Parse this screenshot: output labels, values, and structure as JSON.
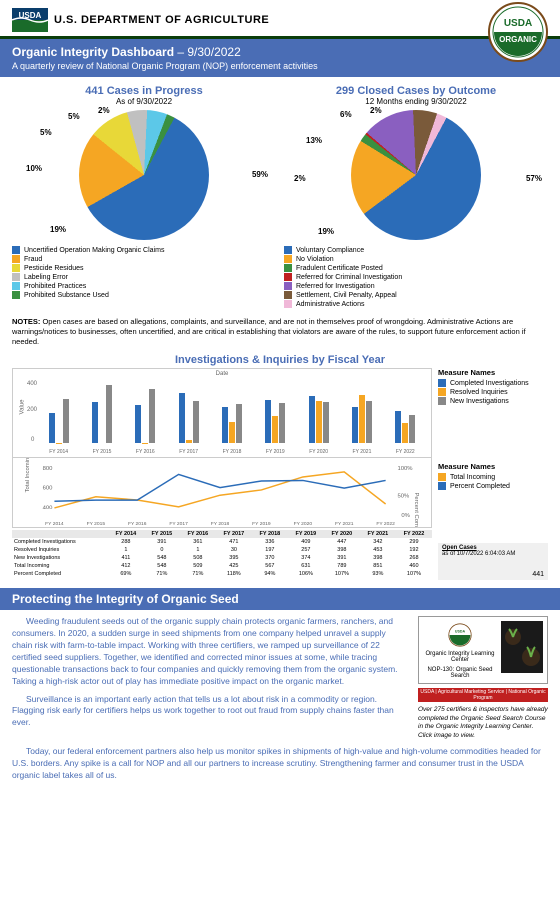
{
  "header": {
    "dept": "U.S. DEPARTMENT OF AGRICULTURE",
    "seal_top": "USDA",
    "seal_bottom": "ORGANIC"
  },
  "titlebar": {
    "main": "Organic Integrity Dashboard",
    "date": "9/30/2022",
    "sub": "A quarterly review of National Organic Program (NOP) enforcement activities"
  },
  "pie1": {
    "title": "441 Cases in Progress",
    "sub": "As of 9/30/2022",
    "slices": [
      {
        "label": "Uncertified Operation Making Organic Claims",
        "pct": 59,
        "color": "#2b6cb8"
      },
      {
        "label": "Fraud",
        "pct": 19,
        "color": "#f5a623"
      },
      {
        "label": "Pesticide Residues",
        "pct": 10,
        "color": "#e8d838"
      },
      {
        "label": "Labeling Error",
        "pct": 5,
        "color": "#c0c0c0"
      },
      {
        "label": "Prohibited Practices",
        "pct": 5,
        "color": "#5cc8e8"
      },
      {
        "label": "Prohibited Substance Used",
        "pct": 2,
        "color": "#3a9040"
      }
    ]
  },
  "pie2": {
    "title": "299 Closed Cases by Outcome",
    "sub": "12 Months ending 9/30/2022",
    "slices": [
      {
        "label": "Voluntary Compliance",
        "pct": 57,
        "color": "#2b6cb8"
      },
      {
        "label": "No Violation",
        "pct": 19,
        "color": "#f5a623"
      },
      {
        "label": "Fradulent Certificate Posted",
        "pct": 2,
        "color": "#3a9040"
      },
      {
        "label": "Referred for Criminal Investigation",
        "pct": 0.5,
        "color": "#c02020"
      },
      {
        "label": "Referred for Investigation",
        "pct": 13,
        "color": "#8a5fc0"
      },
      {
        "label": "Settlement, Civil Penalty, Appeal",
        "pct": 6,
        "color": "#7a5a3a"
      },
      {
        "label": "Administrative Actions",
        "pct": 2,
        "color": "#f0b8d8"
      }
    ],
    "visible_labels": [
      "57%",
      "19%",
      "2%",
      "13%",
      "6%",
      "2%"
    ]
  },
  "notes": {
    "label": "NOTES:",
    "text": "Open cases are based on allegations, complaints, and surveillance, and are not in themselves proof of wrongdoing. Administrative Actions are warnings/notices to businesses, often uncertified, and are critical in establishing that violators are aware of the rules, to support future enforcement action if needed."
  },
  "invest": {
    "title": "Investigations & Inquiries by Fiscal Year",
    "years": [
      "FY 2014",
      "FY 2015",
      "FY 2016",
      "FY 2017",
      "FY 2018",
      "FY 2019",
      "FY 2020",
      "FY 2021",
      "FY 2022"
    ],
    "legend1_title": "Measure Names",
    "legend1": [
      {
        "label": "Completed Investigations",
        "color": "#2b6cb8"
      },
      {
        "label": "Resolved Inquiries",
        "color": "#f5a623"
      },
      {
        "label": "New Investigations",
        "color": "#888888"
      }
    ],
    "legend2_title": "Measure Names",
    "legend2": [
      {
        "label": "Total Incoming",
        "color": "#f5a623"
      },
      {
        "label": "Percent Completed",
        "color": "#2b6cb8"
      }
    ],
    "bars": {
      "completed": [
        288,
        391,
        361,
        471,
        336,
        409,
        447,
        342,
        299
      ],
      "resolved": [
        1,
        0,
        1,
        30,
        197,
        257,
        398,
        453,
        192
      ],
      "new": [
        411,
        548,
        508,
        395,
        370,
        374,
        391,
        398,
        268
      ]
    },
    "bar_max": 600,
    "line": {
      "incoming": [
        412,
        548,
        509,
        425,
        567,
        631,
        789,
        851,
        460
      ],
      "pct": [
        69,
        71,
        71,
        118,
        94,
        106,
        107,
        93,
        107
      ]
    },
    "table": {
      "rows": [
        {
          "name": "Completed Investigations",
          "v": [
            "288",
            "391",
            "361",
            "471",
            "336",
            "409",
            "447",
            "342",
            "299"
          ]
        },
        {
          "name": "Resolved Inquiries",
          "v": [
            "1",
            "0",
            "1",
            "30",
            "197",
            "257",
            "398",
            "453",
            "192"
          ]
        },
        {
          "name": "New Investigations",
          "v": [
            "411",
            "548",
            "508",
            "395",
            "370",
            "374",
            "391",
            "398",
            "268"
          ]
        },
        {
          "name": "Total Incoming",
          "v": [
            "412",
            "548",
            "509",
            "425",
            "567",
            "631",
            "789",
            "851",
            "460"
          ]
        },
        {
          "name": "Percent Completed",
          "v": [
            "69%",
            "71%",
            "71%",
            "118%",
            "94%",
            "106%",
            "107%",
            "93%",
            "107%"
          ]
        }
      ]
    },
    "open_cases": {
      "title": "Open Cases",
      "asof": "as of 10/7/2022 6:04:03 AM",
      "value": "441"
    }
  },
  "protect": {
    "heading": "Protecting the Integrity of Organic Seed",
    "p1": "Weeding fraudulent seeds out of the organic supply chain protects organic farmers, ranchers, and consumers. In 2020, a sudden surge in seed shipments from one company helped unravel a supply chain risk with farm-to-table impact. Working with three certifiers, we ramped up surveillance of 22 certified seed suppliers. Together, we identified and corrected minor issues at some, while tracing questionable transactions back to four companies and quickly removing them from the organic system. Taking a high-risk actor out of play has immediate positive impact on the organic market.",
    "p2": "Surveillance is an important early action that tells us a lot about risk in a commodity or region. Flagging risk early for certifiers helps us work together to root out fraud from supply chains faster than ever.",
    "p3": "Today, our federal enforcement partners also help us monitor spikes in shipments of high-value and high-volume commodities headed for U.S. borders. Any spike is a call for NOP and all our partners to increase scrutiny. Strengthening farmer and consumer trust in the USDA organic label takes all of us.",
    "course_line1": "Organic Integrity Learning Center",
    "course_line2": "NOP-130: Organic Seed Search",
    "banner": "USDA | Agricultural Marketing Service | National Organic Program",
    "caption": "Over 275 certifiers & inspectors have already completed the Organic Seed Search Course in the Organic Integrity Learning Center. Click image to view."
  }
}
